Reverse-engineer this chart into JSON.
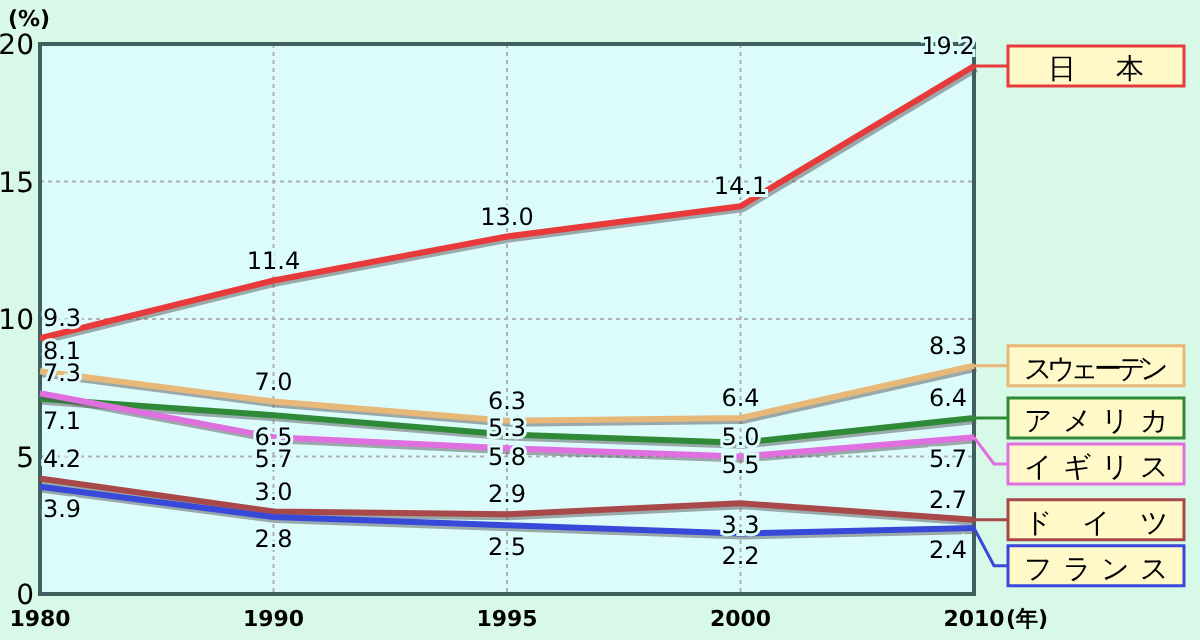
{
  "chart_data": {
    "type": "line",
    "ylabel": "(%)",
    "xlabel": "(年)",
    "categories": [
      "1980",
      "1990",
      "1995",
      "2000",
      "2010"
    ],
    "ylim": [
      0,
      20
    ],
    "yticks": [
      0,
      5,
      10,
      15,
      20
    ],
    "grid": true,
    "series": [
      {
        "name": "日本",
        "color": "#e83a3a",
        "values": [
          9.3,
          11.4,
          13.0,
          14.1,
          19.2
        ],
        "value_labels": [
          "9.3",
          "11.4",
          "13.0",
          "14.1",
          "19.2"
        ]
      },
      {
        "name": "スウェーデン",
        "color": "#e8b878",
        "values": [
          8.1,
          7.0,
          6.3,
          6.4,
          8.3
        ],
        "value_labels": [
          "8.1",
          "7.0",
          "6.3",
          "6.4",
          "8.3"
        ]
      },
      {
        "name": "アメリカ",
        "color": "#2e8a36",
        "values": [
          7.1,
          6.5,
          5.8,
          5.5,
          6.4
        ],
        "value_labels": [
          "7.1",
          "6.5",
          "5.8",
          "5.5",
          "6.4"
        ]
      },
      {
        "name": "イギリス",
        "color": "#e070e0",
        "values": [
          7.3,
          5.7,
          5.3,
          5.0,
          5.7
        ],
        "value_labels": [
          "7.3",
          "5.7",
          "5.3",
          "5.0",
          "5.7"
        ]
      },
      {
        "name": "ドイツ",
        "color": "#a84848",
        "values": [
          4.2,
          3.0,
          2.9,
          3.3,
          2.7
        ],
        "value_labels": [
          "4.2",
          "3.0",
          "2.9",
          "3.3",
          "2.7"
        ]
      },
      {
        "name": "フランス",
        "color": "#3848d8",
        "values": [
          3.9,
          2.8,
          2.5,
          2.2,
          2.4
        ],
        "value_labels": [
          "3.9",
          "2.8",
          "2.5",
          "2.2",
          "2.4"
        ]
      }
    ]
  }
}
